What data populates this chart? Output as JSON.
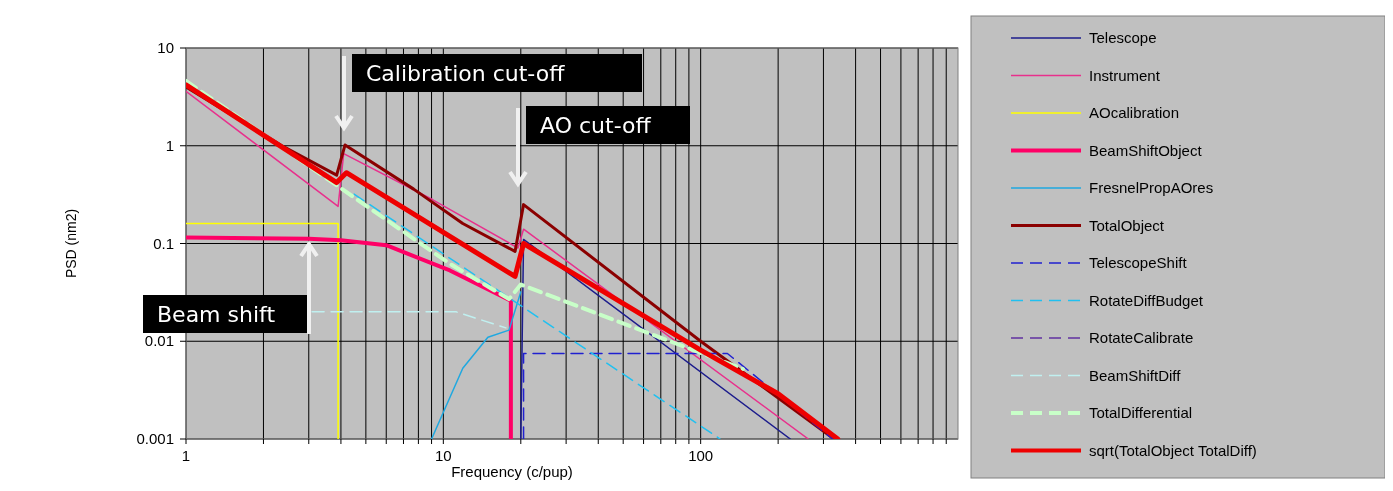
{
  "chart_data": {
    "type": "line",
    "xlabel": "Frequency (c/pup)",
    "ylabel": "PSD (nm2)",
    "log": "xy",
    "grid": true,
    "legend": "right",
    "xlim": [
      1,
      1000
    ],
    "ylim": [
      0.001,
      10
    ],
    "xticks": [
      1,
      {
        "value": 2,
        "label": null
      },
      {
        "value": 3,
        "label": null
      },
      {
        "value": 4,
        "label": null
      },
      {
        "value": 5,
        "label": null
      },
      {
        "value": 6,
        "label": null
      },
      {
        "value": 7,
        "label": null
      },
      {
        "value": 8,
        "label": null
      },
      {
        "value": 9,
        "label": null
      },
      10,
      {
        "value": 20,
        "label": null
      },
      {
        "value": 30,
        "label": null
      },
      {
        "value": 40,
        "label": null
      },
      {
        "value": 50,
        "label": null
      },
      {
        "value": 60,
        "label": null
      },
      {
        "value": 70,
        "label": null
      },
      {
        "value": 80,
        "label": null
      },
      {
        "value": 90,
        "label": null
      },
      100,
      {
        "value": 200,
        "label": null
      },
      {
        "value": 300,
        "label": null
      },
      {
        "value": 400,
        "label": null
      },
      {
        "value": 500,
        "label": null
      },
      {
        "value": 600,
        "label": null
      },
      {
        "value": 700,
        "label": null
      },
      {
        "value": 800,
        "label": null
      },
      {
        "value": 900,
        "label": null
      }
    ],
    "yticks": [
      0.001,
      0.01,
      0.1,
      1,
      10
    ],
    "annotations": [
      "Calibration cut-off",
      "AO cut-off",
      "Beam shift"
    ],
    "series": [
      {
        "name": "Telescope",
        "color": "#1c1c8c",
        "line_style": "solid",
        "x": [
          20,
          20.5,
          223
        ],
        "values": [
          0.001,
          0.11,
          0.001
        ]
      },
      {
        "name": "Instrument",
        "color": "#e8308c",
        "line_style": "solid",
        "x": [
          1,
          3.9,
          4.1,
          9.1,
          19.5,
          20.5,
          262
        ],
        "values": [
          3.6,
          0.24,
          0.83,
          0.28,
          0.09,
          0.14,
          0.001
        ]
      },
      {
        "name": "AOcalibration",
        "color": "#ffff00",
        "line_style": "solid",
        "x": [
          1,
          3.9,
          3.9
        ],
        "values": [
          0.16,
          0.16,
          0.001
        ]
      },
      {
        "name": "BeamShiftObject",
        "color": "#ff0066",
        "line_style": "solid",
        "x": [
          1,
          3,
          4,
          6,
          10.6,
          18.3,
          18.3
        ],
        "values": [
          0.115,
          0.112,
          0.108,
          0.096,
          0.053,
          0.026,
          0.001
        ]
      },
      {
        "name": "FresnelPropAOres",
        "color": "#1fa8e0",
        "line_style": "solid",
        "x": [
          9,
          11.9,
          14.9,
          18,
          20
        ],
        "values": [
          0.001,
          0.0053,
          0.011,
          0.013,
          0.032
        ]
      },
      {
        "name": "TotalObject",
        "color": "#8b0000",
        "line_style": "solid",
        "x": [
          1,
          2.36,
          3.85,
          4.15,
          7.67,
          11.9,
          19,
          20.5,
          100,
          330
        ],
        "values": [
          4,
          1,
          0.5,
          1.02,
          0.36,
          0.16,
          0.083,
          0.25,
          0.01,
          0.001
        ]
      },
      {
        "name": "TelescopeShift",
        "color": "#2020d0",
        "line_style": "dashed",
        "x": [
          20.5,
          20.5,
          127,
          326
        ],
        "values": [
          0.001,
          0.0075,
          0.0075,
          0.001
        ]
      },
      {
        "name": "RotateDiffBudget",
        "color": "#20c0f0",
        "line_style": "dashed",
        "x": [
          4.5,
          119
        ],
        "values": [
          0.32,
          0.001
        ]
      },
      {
        "name": "RotateCalibrate",
        "color": "#6030a0",
        "line_style": "dashed"
      },
      {
        "name": "BeamShiftDiff",
        "color": "#c0f0f0",
        "line_style": "dashed",
        "x": [
          3.09,
          11.2,
          17.5
        ],
        "values": [
          0.02,
          0.02,
          0.0137
        ]
      },
      {
        "name": "TotalDifferential",
        "color": "#c8ffc8",
        "line_style": "dashed",
        "x": [
          1,
          10.6,
          18,
          20,
          146
        ],
        "values": [
          4.6,
          0.062,
          0.027,
          0.038,
          0.0052
        ]
      },
      {
        "name": "sqrt(TotalObject TotalDiff)",
        "color": "#ee0000",
        "line_style": "solid",
        "x": [
          1,
          3.85,
          4.2,
          19,
          20.5,
          100,
          200,
          341
        ],
        "values": [
          4.2,
          0.42,
          0.53,
          0.046,
          0.1,
          0.0081,
          0.0029,
          0.001
        ]
      }
    ]
  }
}
